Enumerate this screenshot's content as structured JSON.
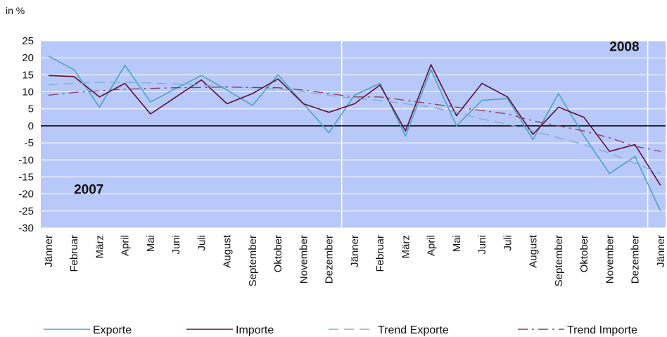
{
  "chart_data": {
    "type": "line",
    "unit_label": "in %",
    "categories": [
      "Jänner",
      "Februar",
      "März",
      "April",
      "Mai",
      "Juni",
      "Juli",
      "August",
      "September",
      "Oktober",
      "November",
      "Dezember",
      "Jänner",
      "Februar",
      "März",
      "April",
      "Mai",
      "Juni",
      "Juli",
      "August",
      "September",
      "Oktober",
      "November",
      "Dezember",
      "Jänner"
    ],
    "year_labels": [
      {
        "text": "2007",
        "category_index": 1,
        "y": -20
      },
      {
        "text": "2008",
        "category_index": 22,
        "y": 22
      }
    ],
    "year_divider_indices": [
      11.5,
      23.5
    ],
    "ylim": [
      -30,
      25
    ],
    "yticks": [
      25,
      20,
      15,
      10,
      5,
      0,
      -5,
      -10,
      -15,
      -20,
      -25,
      -30
    ],
    "grid": "horizontal",
    "legend_position": "bottom",
    "series": [
      {
        "name": "Exporte",
        "color": "#4aa3c4",
        "dash": "solid",
        "values": [
          20.5,
          16.5,
          5.5,
          17.8,
          7.0,
          11.0,
          14.8,
          10.5,
          6.0,
          15.0,
          6.5,
          -2.0,
          9.0,
          12.5,
          -3.0,
          16.5,
          0.0,
          7.5,
          8.0,
          -4.0,
          9.5,
          -3.0,
          -14.0,
          -9.0,
          -25.0
        ]
      },
      {
        "name": "Importe",
        "color": "#5a0f3c",
        "dash": "solid",
        "values": [
          14.8,
          14.5,
          8.5,
          12.5,
          3.5,
          8.5,
          13.5,
          6.5,
          9.5,
          13.8,
          6.5,
          4.0,
          6.5,
          12.0,
          -1.5,
          18.0,
          3.0,
          12.5,
          8.5,
          -2.5,
          5.5,
          2.5,
          -7.5,
          -5.5,
          -17.5
        ]
      },
      {
        "name": "Trend Exporte",
        "color": "#7ab0cc",
        "dash": "dashed",
        "values": [
          12.0,
          12.5,
          12.8,
          12.8,
          12.6,
          12.3,
          12.0,
          11.5,
          11.2,
          10.8,
          10.0,
          9.0,
          8.0,
          7.5,
          6.5,
          5.5,
          4.0,
          2.0,
          0.5,
          -1.5,
          -3.5,
          -5.5,
          -8.0,
          -11.0,
          -14.0
        ]
      },
      {
        "name": "Trend Importe",
        "color": "#8a3a66",
        "dash": "dashdot",
        "values": [
          9.0,
          9.8,
          10.3,
          10.8,
          11.0,
          11.2,
          11.3,
          11.4,
          11.3,
          11.2,
          10.5,
          9.5,
          8.5,
          8.5,
          7.5,
          6.5,
          5.5,
          4.5,
          3.5,
          1.5,
          0.0,
          -1.5,
          -3.5,
          -6.0,
          -7.5
        ]
      }
    ]
  },
  "colors": {
    "plot_background": "#b8c8f8",
    "gridline": "#ffffff",
    "zero_line": "#000000"
  }
}
